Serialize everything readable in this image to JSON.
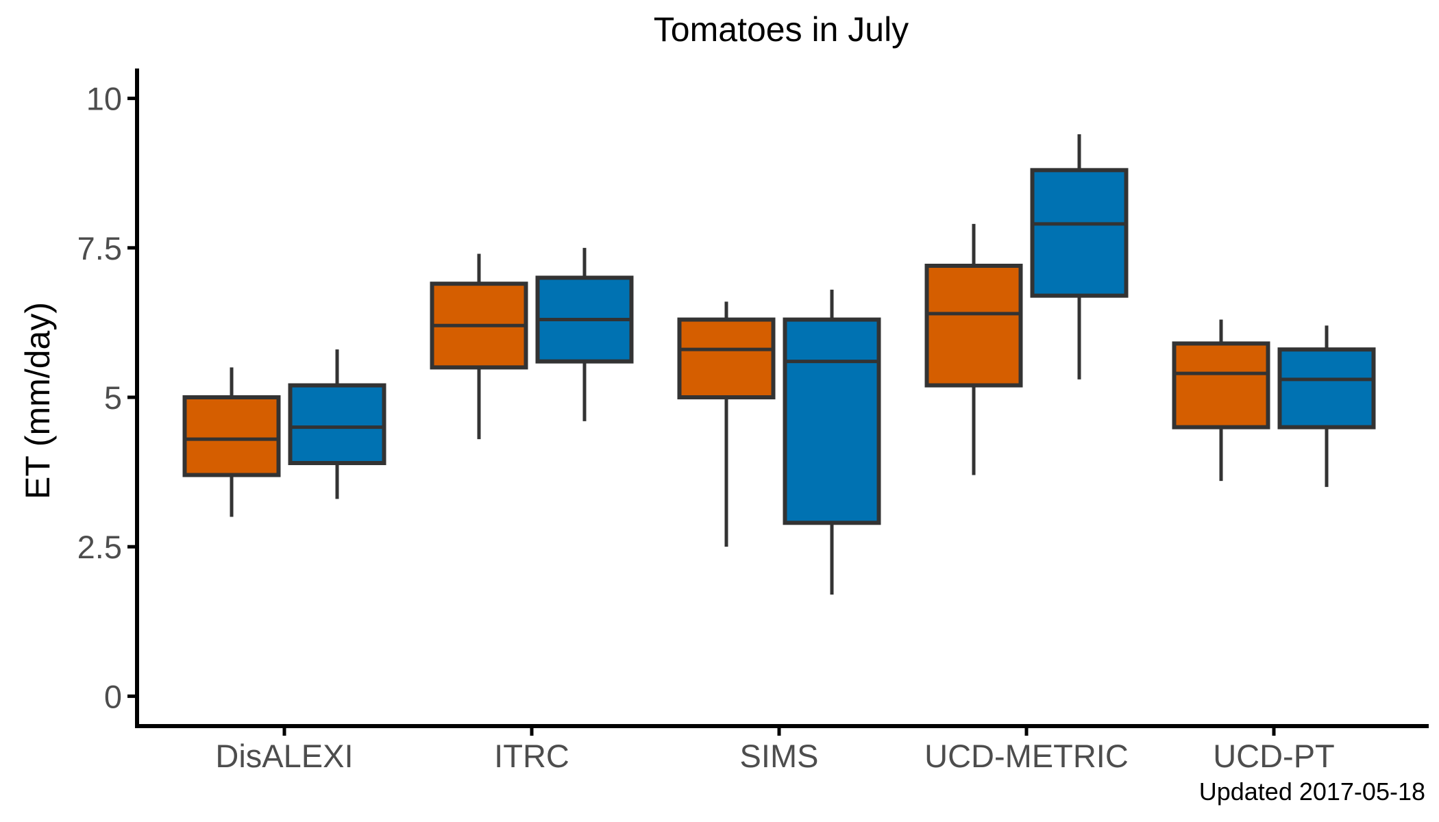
{
  "chart_data": {
    "type": "box",
    "title": "Tomatoes in July",
    "xlabel": "",
    "ylabel": "ET (mm/day)",
    "ylim": [
      -0.5,
      10.5
    ],
    "yticks": [
      "0",
      "2.5",
      "5",
      "7.5",
      "10"
    ],
    "ytick_values": [
      0,
      2.5,
      5,
      7.5,
      10
    ],
    "categories": [
      "DisALEXI",
      "ITRC",
      "SIMS",
      "UCD-METRIC",
      "UCD-PT"
    ],
    "grid": false,
    "legend": "none",
    "series": [
      {
        "color": "#D55E00",
        "boxes": [
          {
            "min": 3.0,
            "q1": 3.7,
            "median": 4.3,
            "q3": 5.0,
            "max": 5.5
          },
          {
            "min": 4.3,
            "q1": 5.5,
            "median": 6.2,
            "q3": 6.9,
            "max": 7.4
          },
          {
            "min": 2.5,
            "q1": 5.0,
            "median": 5.8,
            "q3": 6.3,
            "max": 6.6
          },
          {
            "min": 3.7,
            "q1": 5.2,
            "median": 6.4,
            "q3": 7.2,
            "max": 7.9
          },
          {
            "min": 3.6,
            "q1": 4.5,
            "median": 5.4,
            "q3": 5.9,
            "max": 6.3
          }
        ]
      },
      {
        "color": "#0072B2",
        "boxes": [
          {
            "min": 3.3,
            "q1": 3.9,
            "median": 4.5,
            "q3": 5.2,
            "max": 5.8
          },
          {
            "min": 4.6,
            "q1": 5.6,
            "median": 6.3,
            "q3": 7.0,
            "max": 7.5
          },
          {
            "min": 1.7,
            "q1": 2.9,
            "median": 5.6,
            "q3": 6.3,
            "max": 6.8
          },
          {
            "min": 5.3,
            "q1": 6.7,
            "median": 7.9,
            "q3": 8.8,
            "max": 9.4
          },
          {
            "min": 3.5,
            "q1": 4.5,
            "median": 5.3,
            "q3": 5.8,
            "max": 6.2
          }
        ]
      }
    ]
  },
  "caption": "Updated  2017-05-18",
  "colors": {
    "axis": "#000000",
    "box_outline": "#333333"
  }
}
